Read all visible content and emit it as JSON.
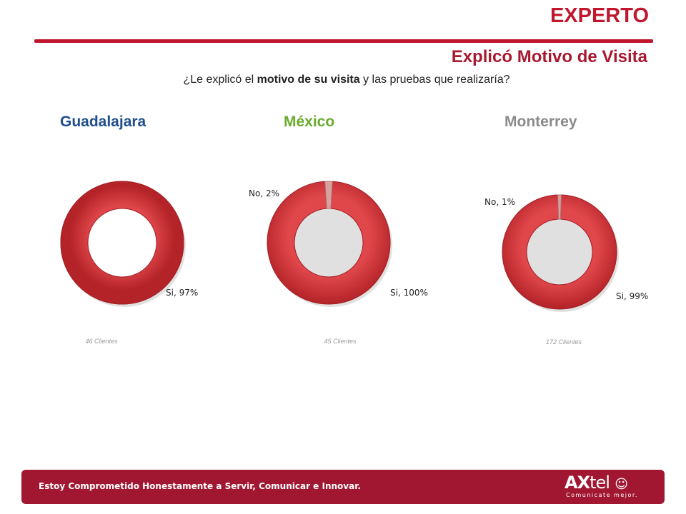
{
  "header": {
    "title": "EXPERTO",
    "section": "Explicó Motivo de Visita"
  },
  "question": {
    "pre": "¿Le explicó el ",
    "bold": "motivo de su visita",
    "post": " y las pruebas que realizaría?"
  },
  "colors": {
    "brand": "#c0162e",
    "donut": "#d23b3f",
    "donut_dark": "#a31e24",
    "slice_no": "#d9a0a0",
    "guadalajara": "#1f4e8c",
    "mexico": "#6aaa2a",
    "monterrey": "#8a8a8a",
    "footer": "#a11731"
  },
  "chart_data": [
    {
      "type": "pie",
      "title": "Guadalajara",
      "labels": [
        "Si"
      ],
      "values": [
        97
      ],
      "value_labels": [
        "Si, 97%"
      ],
      "note": "46 Clientes"
    },
    {
      "type": "pie",
      "title": "México",
      "labels": [
        "Si",
        "No"
      ],
      "values": [
        100,
        2
      ],
      "value_labels": [
        "Si, 100%",
        "No, 2%"
      ],
      "note": "45 Clientes"
    },
    {
      "type": "pie",
      "title": "Monterrey",
      "labels": [
        "Si",
        "No"
      ],
      "values": [
        99,
        1
      ],
      "value_labels": [
        "Si, 99%",
        "No, 1%"
      ],
      "note": "172 Clientes"
    }
  ],
  "footer": {
    "text": "Estoy Comprometido Honestamente a Servir, Comunicar e Innovar.",
    "logo_bold": "AX",
    "logo_thin": "tel",
    "logo_tagline": "Comunicate mejor."
  }
}
